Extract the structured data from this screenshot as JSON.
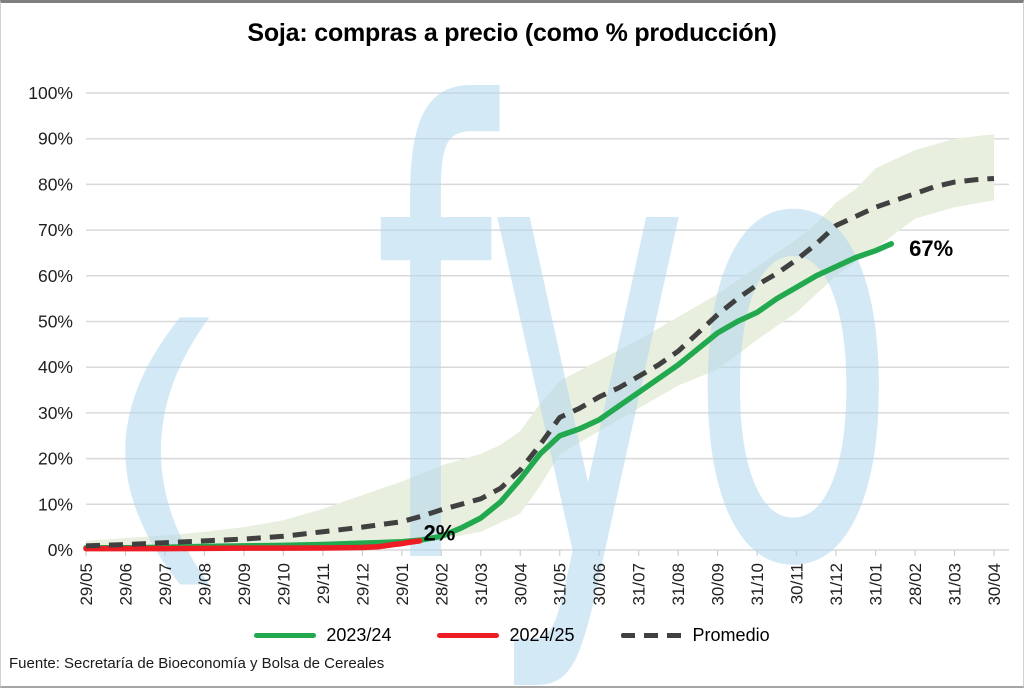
{
  "chart_data": {
    "type": "line",
    "title": "Soja: compras a precio (como % producción)",
    "xlabel": "",
    "ylabel": "",
    "ylim": [
      0,
      100
    ],
    "ytick_step": 10,
    "ytick_suffix": "%",
    "grid": true,
    "legend_position": "bottom",
    "x_labels": [
      "29/05",
      "29/06",
      "29/07",
      "29/08",
      "29/09",
      "29/10",
      "29/11",
      "29/12",
      "29/01",
      "28/02",
      "31/03",
      "30/04",
      "31/05",
      "30/06",
      "31/07",
      "31/08",
      "30/09",
      "31/10",
      "30/11",
      "31/12",
      "31/01",
      "28/02",
      "31/03",
      "30/04"
    ],
    "series": [
      {
        "name": "2023/24",
        "color": "#22A84E",
        "dash": false,
        "points": [
          [
            0,
            0.5
          ],
          [
            1,
            0.5
          ],
          [
            2,
            0.6
          ],
          [
            3,
            0.8
          ],
          [
            4,
            0.9
          ],
          [
            5,
            1.0
          ],
          [
            6,
            1.2
          ],
          [
            7,
            1.5
          ],
          [
            8,
            1.8
          ],
          [
            8.5,
            2.2
          ],
          [
            9,
            3
          ],
          [
            9.5,
            4.8
          ],
          [
            10,
            7
          ],
          [
            10.5,
            10.5
          ],
          [
            11,
            15.5
          ],
          [
            11.5,
            21
          ],
          [
            12,
            25
          ],
          [
            12.5,
            26.5
          ],
          [
            13,
            28.5
          ],
          [
            13.5,
            31.5
          ],
          [
            14,
            34.5
          ],
          [
            14.5,
            37.5
          ],
          [
            15,
            40.5
          ],
          [
            15.5,
            44
          ],
          [
            16,
            47.5
          ],
          [
            16.5,
            50
          ],
          [
            17,
            52
          ],
          [
            17.5,
            55
          ],
          [
            18,
            57.5
          ],
          [
            18.5,
            60
          ],
          [
            19,
            62
          ],
          [
            19.5,
            64
          ],
          [
            20,
            65.5
          ],
          [
            20.4,
            67
          ]
        ]
      },
      {
        "name": "2024/25",
        "color": "#EE1C25",
        "dash": false,
        "points": [
          [
            0,
            0.3
          ],
          [
            1,
            0.3
          ],
          [
            2,
            0.3
          ],
          [
            3,
            0.35
          ],
          [
            4,
            0.4
          ],
          [
            5,
            0.4
          ],
          [
            6,
            0.45
          ],
          [
            7,
            0.55
          ],
          [
            7.4,
            0.7
          ],
          [
            7.8,
            1.2
          ],
          [
            8,
            1.4
          ],
          [
            8.2,
            1.7
          ],
          [
            8.45,
            2
          ]
        ]
      },
      {
        "name": "Promedio",
        "color": "#404040",
        "dash": true,
        "points": [
          [
            0,
            0.9
          ],
          [
            1,
            1.2
          ],
          [
            2,
            1.6
          ],
          [
            3,
            2
          ],
          [
            4,
            2.4
          ],
          [
            5,
            3
          ],
          [
            6,
            4
          ],
          [
            7,
            5
          ],
          [
            8,
            6.2
          ],
          [
            8.5,
            7.4
          ],
          [
            9,
            8.8
          ],
          [
            9.5,
            10
          ],
          [
            10,
            11.2
          ],
          [
            10.5,
            13.5
          ],
          [
            11,
            17.5
          ],
          [
            11.5,
            23
          ],
          [
            12,
            29
          ],
          [
            12.5,
            31
          ],
          [
            13,
            33.5
          ],
          [
            13.5,
            35.5
          ],
          [
            14,
            38
          ],
          [
            14.5,
            40.5
          ],
          [
            15,
            43.5
          ],
          [
            15.5,
            47.5
          ],
          [
            16,
            51.5
          ],
          [
            16.5,
            55
          ],
          [
            17,
            58
          ],
          [
            17.5,
            60.5
          ],
          [
            18,
            63.5
          ],
          [
            18.5,
            67
          ],
          [
            19,
            71
          ],
          [
            19.5,
            73
          ],
          [
            20,
            75
          ],
          [
            20.5,
            76.5
          ],
          [
            21,
            78
          ],
          [
            21.5,
            79.5
          ],
          [
            22,
            80.5
          ],
          [
            22.5,
            81
          ],
          [
            23,
            81.3
          ]
        ]
      }
    ],
    "band": {
      "name": "rango min-max",
      "color": "#E8EFDE",
      "upper": [
        [
          0,
          2
        ],
        [
          1,
          2.6
        ],
        [
          2,
          3.2
        ],
        [
          3,
          4
        ],
        [
          4,
          5
        ],
        [
          5,
          6.5
        ],
        [
          6,
          9
        ],
        [
          7,
          12
        ],
        [
          8,
          15
        ],
        [
          9,
          18.5
        ],
        [
          10,
          21
        ],
        [
          10.5,
          23
        ],
        [
          11,
          26
        ],
        [
          11.5,
          32
        ],
        [
          12,
          37
        ],
        [
          13,
          41.5
        ],
        [
          14,
          46
        ],
        [
          15,
          51
        ],
        [
          16,
          56
        ],
        [
          17,
          62
        ],
        [
          18,
          68
        ],
        [
          18.5,
          71.5
        ],
        [
          19,
          76
        ],
        [
          19.5,
          79
        ],
        [
          20,
          83.5
        ],
        [
          21,
          87.5
        ],
        [
          22,
          90
        ],
        [
          23,
          91
        ]
      ],
      "lower": [
        [
          0,
          0
        ],
        [
          1,
          0.1
        ],
        [
          2,
          0.2
        ],
        [
          3,
          0.3
        ],
        [
          4,
          0.4
        ],
        [
          5,
          0.5
        ],
        [
          6,
          0.8
        ],
        [
          7,
          1.2
        ],
        [
          8,
          1.6
        ],
        [
          9,
          2.4
        ],
        [
          10,
          4
        ],
        [
          11,
          8
        ],
        [
          11.5,
          14
        ],
        [
          12,
          21
        ],
        [
          13,
          26
        ],
        [
          14,
          31
        ],
        [
          15,
          36
        ],
        [
          16,
          39.5
        ],
        [
          17,
          46
        ],
        [
          18,
          52
        ],
        [
          19,
          60
        ],
        [
          20,
          66
        ],
        [
          21,
          72.5
        ],
        [
          22,
          75
        ],
        [
          23,
          76.5
        ]
      ]
    },
    "annotations": [
      {
        "text": "2%",
        "x": 8.55,
        "y": 0.8
      },
      {
        "text": "67%",
        "x": 20.85,
        "y": 63
      }
    ]
  },
  "legend": [
    {
      "label": "2023/24",
      "color": "#22A84E",
      "style": "solid"
    },
    {
      "label": "2024/25",
      "color": "#EE1C25",
      "style": "solid"
    },
    {
      "label": "Promedio",
      "color": "#404040",
      "style": "dashed"
    }
  ],
  "watermark": {
    "mark": "(",
    "text": "fyo",
    "color": "rgba(176,215,238,0.55)"
  },
  "source": "Fuente: Secretaría de Bioeconomía y Bolsa de Cereales",
  "colors": {
    "gridline": "#d9d9d9",
    "axis_text": "#1f1f1f",
    "annotation_text": "#000000"
  }
}
